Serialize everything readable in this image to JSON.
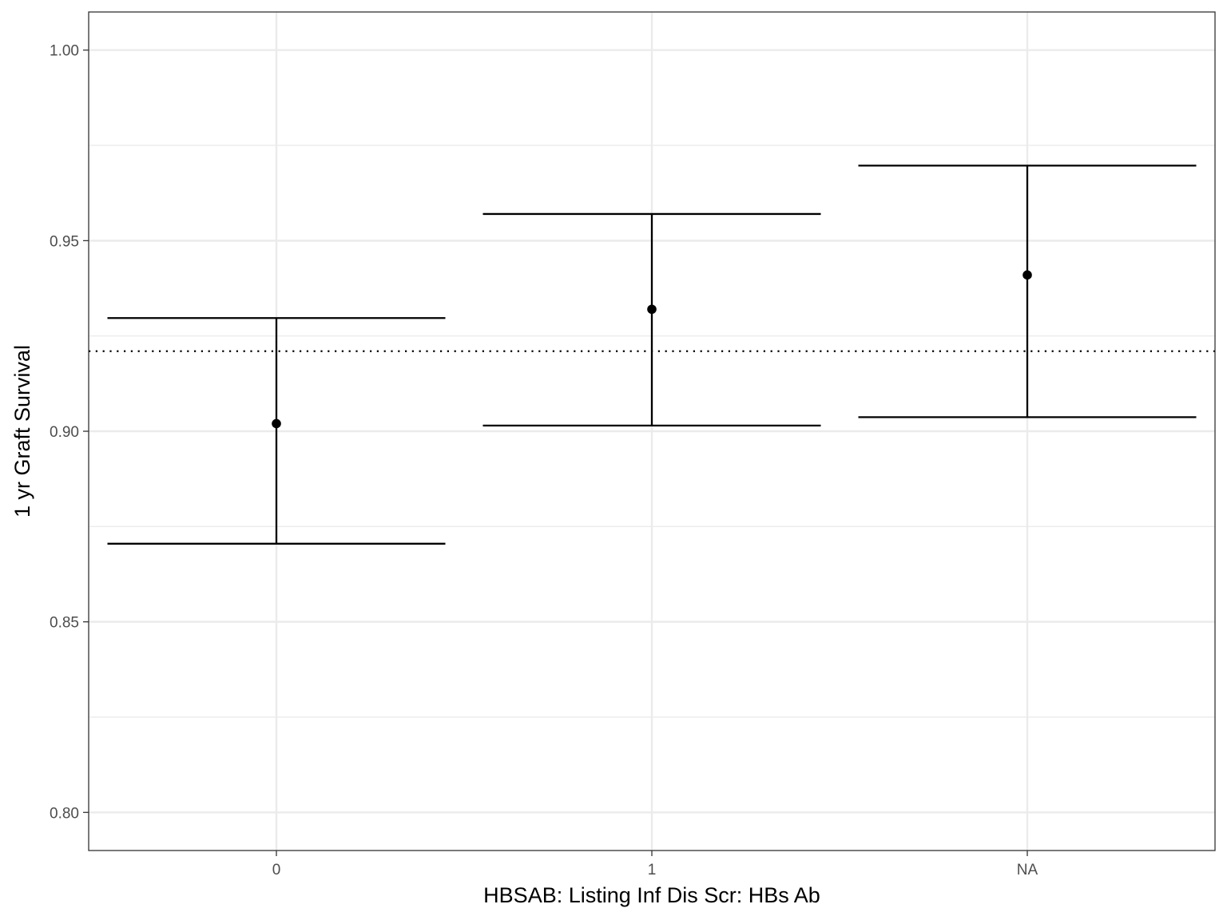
{
  "chart_data": {
    "type": "errorbar",
    "xlabel": "HBSAB: Listing Inf Dis Scr: HBs Ab",
    "ylabel": "1 yr Graft Survival",
    "categories": [
      "0",
      "1",
      "NA"
    ],
    "estimates": [
      0.902,
      0.932,
      0.941
    ],
    "lower": [
      0.8705,
      0.9015,
      0.9037
    ],
    "upper": [
      0.9297,
      0.957,
      0.9697
    ],
    "reference_line": {
      "value": 0.921,
      "style": "dotted"
    },
    "ylim": [
      0.79,
      1.01
    ],
    "yticks": [
      0.8,
      0.85,
      0.9,
      0.95,
      1.0
    ],
    "ytick_labels": [
      "0.80",
      "0.85",
      "0.90",
      "0.95",
      "1.00"
    ],
    "grid": true,
    "legend": "none"
  }
}
